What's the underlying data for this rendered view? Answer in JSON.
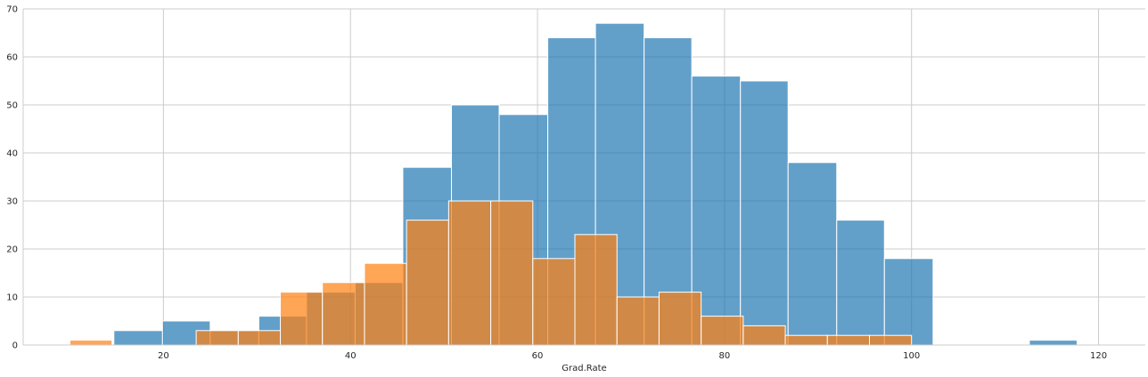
{
  "chart_data": {
    "type": "bar",
    "xlabel": "Grad.Rate",
    "ylabel": "",
    "title": "",
    "xlim": [
      5,
      125
    ],
    "ylim": [
      0,
      70
    ],
    "xticks": [
      20,
      40,
      60,
      80,
      100,
      120
    ],
    "yticks": [
      0,
      10,
      20,
      30,
      40,
      50,
      60,
      70
    ],
    "grid": true,
    "series": [
      {
        "color": "#1f77b4",
        "opacity": 0.7,
        "bins": [
          {
            "x0": 14.7,
            "x1": 19.9,
            "count": 3
          },
          {
            "x0": 19.9,
            "x1": 25.0,
            "count": 5
          },
          {
            "x0": 25.0,
            "x1": 30.2,
            "count": 3
          },
          {
            "x0": 30.2,
            "x1": 35.3,
            "count": 6
          },
          {
            "x0": 35.3,
            "x1": 40.5,
            "count": 11
          },
          {
            "x0": 40.5,
            "x1": 45.6,
            "count": 13
          },
          {
            "x0": 45.6,
            "x1": 50.8,
            "count": 37
          },
          {
            "x0": 50.8,
            "x1": 55.9,
            "count": 50
          },
          {
            "x0": 55.9,
            "x1": 61.1,
            "count": 48
          },
          {
            "x0": 61.1,
            "x1": 66.2,
            "count": 64
          },
          {
            "x0": 66.2,
            "x1": 71.4,
            "count": 67
          },
          {
            "x0": 71.4,
            "x1": 76.5,
            "count": 64
          },
          {
            "x0": 76.5,
            "x1": 81.7,
            "count": 56
          },
          {
            "x0": 81.7,
            "x1": 86.8,
            "count": 55
          },
          {
            "x0": 86.8,
            "x1": 92.0,
            "count": 38
          },
          {
            "x0": 92.0,
            "x1": 97.1,
            "count": 26
          },
          {
            "x0": 97.1,
            "x1": 102.3,
            "count": 18
          },
          {
            "x0": 102.3,
            "x1": 107.4,
            "count": 0
          },
          {
            "x0": 107.4,
            "x1": 112.6,
            "count": 0
          },
          {
            "x0": 112.6,
            "x1": 117.7,
            "count": 1
          }
        ]
      },
      {
        "color": "#ff7f0e",
        "opacity": 0.7,
        "bins": [
          {
            "x0": 10.0,
            "x1": 14.5,
            "count": 1
          },
          {
            "x0": 14.5,
            "x1": 19.0,
            "count": 0
          },
          {
            "x0": 19.0,
            "x1": 23.5,
            "count": 0
          },
          {
            "x0": 23.5,
            "x1": 28.0,
            "count": 3
          },
          {
            "x0": 28.0,
            "x1": 32.5,
            "count": 3
          },
          {
            "x0": 32.5,
            "x1": 37.0,
            "count": 11
          },
          {
            "x0": 37.0,
            "x1": 41.5,
            "count": 13
          },
          {
            "x0": 41.5,
            "x1": 46.0,
            "count": 17
          },
          {
            "x0": 46.0,
            "x1": 50.5,
            "count": 26
          },
          {
            "x0": 50.5,
            "x1": 55.0,
            "count": 30
          },
          {
            "x0": 55.0,
            "x1": 59.5,
            "count": 30
          },
          {
            "x0": 59.5,
            "x1": 64.0,
            "count": 18
          },
          {
            "x0": 64.0,
            "x1": 68.5,
            "count": 23
          },
          {
            "x0": 68.5,
            "x1": 73.0,
            "count": 10
          },
          {
            "x0": 73.0,
            "x1": 77.5,
            "count": 11
          },
          {
            "x0": 77.5,
            "x1": 82.0,
            "count": 6
          },
          {
            "x0": 82.0,
            "x1": 86.5,
            "count": 4
          },
          {
            "x0": 86.5,
            "x1": 91.0,
            "count": 2
          },
          {
            "x0": 91.0,
            "x1": 95.5,
            "count": 2
          },
          {
            "x0": 95.5,
            "x1": 100.0,
            "count": 2
          }
        ]
      }
    ]
  }
}
